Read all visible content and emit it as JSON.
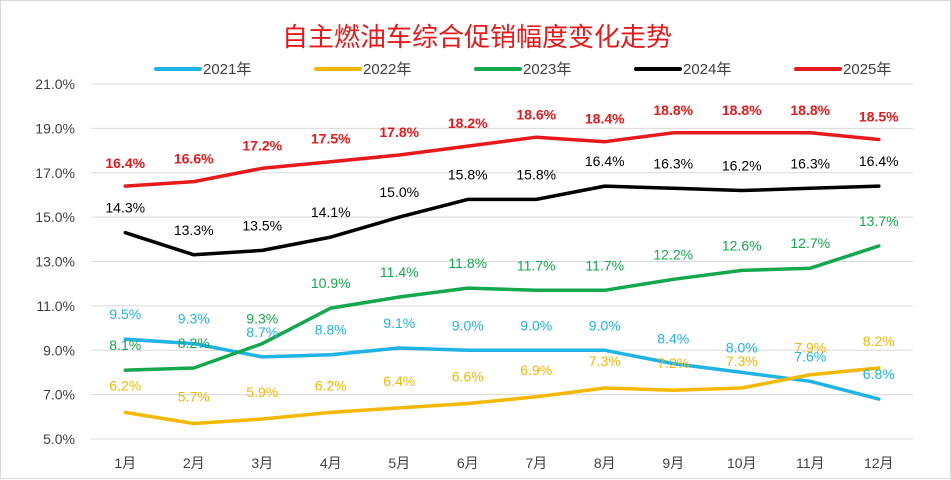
{
  "chart_data": {
    "type": "line",
    "title": "自主燃油车综合促销幅度变化走势",
    "xlabel": "",
    "ylabel": "",
    "categories": [
      "1月",
      "2月",
      "3月",
      "4月",
      "5月",
      "6月",
      "7月",
      "8月",
      "9月",
      "10月",
      "11月",
      "12月"
    ],
    "ylim": [
      5.0,
      21.0
    ],
    "yticks": [
      "5.0%",
      "7.0%",
      "9.0%",
      "11.0%",
      "13.0%",
      "15.0%",
      "17.0%",
      "19.0%",
      "21.0%"
    ],
    "grid": true,
    "legend_position": "top",
    "series": [
      {
        "name": "2021年",
        "color": "#1fb3e6",
        "values": [
          9.5,
          9.3,
          8.7,
          8.8,
          9.1,
          9.0,
          9.0,
          9.0,
          8.4,
          8.0,
          7.6,
          6.8
        ],
        "labels": [
          "9.5%",
          "9.3%",
          "8.7%",
          "8.8%",
          "9.1%",
          "9.0%",
          "9.0%",
          "9.0%",
          "8.4%",
          "8.0%",
          "7.6%",
          "6.8%"
        ]
      },
      {
        "name": "2022年",
        "color": "#f5b800",
        "values": [
          6.2,
          5.7,
          5.9,
          6.2,
          6.4,
          6.6,
          6.9,
          7.3,
          7.2,
          7.3,
          7.9,
          8.2
        ],
        "labels": [
          "6.2%",
          "5.7%",
          "5.9%",
          "6.2%",
          "6.4%",
          "6.6%",
          "6.9%",
          "7.3%",
          "7.2%",
          "7.3%",
          "7.9%",
          "8.2%"
        ]
      },
      {
        "name": "2023年",
        "color": "#12a84b",
        "values": [
          8.1,
          8.2,
          9.3,
          10.9,
          11.4,
          11.8,
          11.7,
          11.7,
          12.2,
          12.6,
          12.7,
          13.7
        ],
        "labels": [
          "8.1%",
          "8.2%",
          "9.3%",
          "10.9%",
          "11.4%",
          "11.8%",
          "11.7%",
          "11.7%",
          "12.2%",
          "12.6%",
          "12.7%",
          "13.7%"
        ]
      },
      {
        "name": "2024年",
        "color": "#000000",
        "values": [
          14.3,
          13.3,
          13.5,
          14.1,
          15.0,
          15.8,
          15.8,
          16.4,
          16.3,
          16.2,
          16.3,
          16.4
        ],
        "labels": [
          "14.3%",
          "13.3%",
          "13.5%",
          "14.1%",
          "15.0%",
          "15.8%",
          "15.8%",
          "16.4%",
          "16.3%",
          "16.2%",
          "16.3%",
          "16.4%"
        ]
      },
      {
        "name": "2025年",
        "color": "#e8191b",
        "values": [
          16.4,
          16.6,
          17.2,
          17.5,
          17.8,
          18.2,
          18.6,
          18.4,
          18.8,
          18.8,
          18.8,
          18.5
        ],
        "labels": [
          "16.4%",
          "16.6%",
          "17.2%",
          "17.5%",
          "17.8%",
          "18.2%",
          "18.6%",
          "18.4%",
          "18.8%",
          "18.8%",
          "18.8%",
          "18.5%"
        ]
      }
    ]
  }
}
